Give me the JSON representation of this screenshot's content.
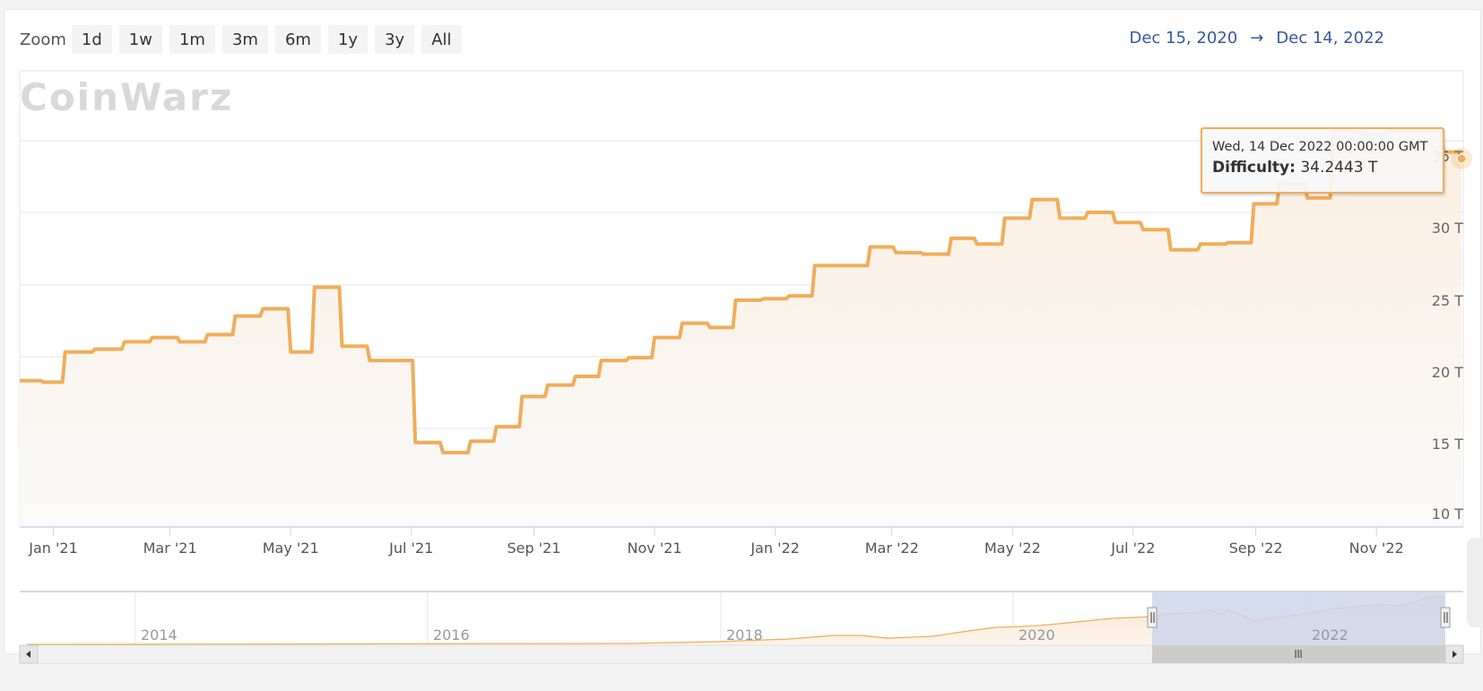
{
  "zoom": {
    "label": "Zoom",
    "buttons": [
      "1d",
      "1w",
      "1m",
      "3m",
      "6m",
      "1y",
      "3y",
      "All"
    ]
  },
  "range": {
    "from": "Dec 15, 2020",
    "arrow": "→",
    "to": "Dec 14, 2022"
  },
  "watermark": "CoinWarz",
  "tooltip": {
    "date": "Wed, 14 Dec 2022 00:00:00 GMT",
    "label": "Difficulty:",
    "value": "34.2443 T"
  },
  "colors": {
    "line": "#f0ad5a",
    "fill_top": "#fbeee0",
    "fill_bottom": "#fafafa",
    "navigator_mask": "#ccd6eb",
    "range_text": "#335aa0"
  },
  "chart_data": {
    "type": "line",
    "step": true,
    "title": "",
    "xlabel": "",
    "ylabel": "Difficulty",
    "series_name": "Difficulty",
    "unit": "T",
    "x_range": [
      "2020-12-15",
      "2022-12-14"
    ],
    "ylim": [
      10,
      37
    ],
    "grid": true,
    "y_ticks": [
      "10 T",
      "15 T",
      "20 T",
      "25 T",
      "30 T",
      "35 T"
    ],
    "y_tick_values": [
      10,
      15,
      20,
      25,
      30,
      35
    ],
    "x_ticks": [
      "Jan '21",
      "Mar '21",
      "May '21",
      "Jul '21",
      "Sep '21",
      "Nov '21",
      "Jan '22",
      "Mar '22",
      "May '22",
      "Jul '22",
      "Sep '22",
      "Nov '22"
    ],
    "points": [
      {
        "x": "2020-12-15",
        "y": 18.3
      },
      {
        "x": "2020-12-27",
        "y": 18.2
      },
      {
        "x": "2021-01-07",
        "y": 20.3
      },
      {
        "x": "2021-01-22",
        "y": 20.5
      },
      {
        "x": "2021-02-06",
        "y": 21.0
      },
      {
        "x": "2021-02-20",
        "y": 21.3
      },
      {
        "x": "2021-03-06",
        "y": 21.0
      },
      {
        "x": "2021-03-20",
        "y": 21.5
      },
      {
        "x": "2021-04-03",
        "y": 22.8
      },
      {
        "x": "2021-04-17",
        "y": 23.3
      },
      {
        "x": "2021-05-01",
        "y": 20.3
      },
      {
        "x": "2021-05-13",
        "y": 24.8
      },
      {
        "x": "2021-05-27",
        "y": 20.7
      },
      {
        "x": "2021-06-10",
        "y": 19.7
      },
      {
        "x": "2021-07-03",
        "y": 14.0
      },
      {
        "x": "2021-07-17",
        "y": 13.3
      },
      {
        "x": "2021-07-31",
        "y": 14.1
      },
      {
        "x": "2021-08-13",
        "y": 15.1
      },
      {
        "x": "2021-08-26",
        "y": 17.2
      },
      {
        "x": "2021-09-08",
        "y": 18.0
      },
      {
        "x": "2021-09-22",
        "y": 18.6
      },
      {
        "x": "2021-10-05",
        "y": 19.7
      },
      {
        "x": "2021-10-19",
        "y": 19.9
      },
      {
        "x": "2021-11-01",
        "y": 21.3
      },
      {
        "x": "2021-11-15",
        "y": 22.3
      },
      {
        "x": "2021-11-29",
        "y": 22.0
      },
      {
        "x": "2021-12-12",
        "y": 23.9
      },
      {
        "x": "2021-12-26",
        "y": 24.0
      },
      {
        "x": "2022-01-08",
        "y": 24.2
      },
      {
        "x": "2022-01-21",
        "y": 26.3
      },
      {
        "x": "2022-02-18",
        "y": 27.6
      },
      {
        "x": "2022-03-03",
        "y": 27.2
      },
      {
        "x": "2022-03-17",
        "y": 27.1
      },
      {
        "x": "2022-03-31",
        "y": 28.2
      },
      {
        "x": "2022-04-13",
        "y": 27.8
      },
      {
        "x": "2022-04-27",
        "y": 29.6
      },
      {
        "x": "2022-05-11",
        "y": 30.9
      },
      {
        "x": "2022-05-25",
        "y": 29.6
      },
      {
        "x": "2022-06-08",
        "y": 30.0
      },
      {
        "x": "2022-06-22",
        "y": 29.3
      },
      {
        "x": "2022-07-06",
        "y": 28.8
      },
      {
        "x": "2022-07-20",
        "y": 27.4
      },
      {
        "x": "2022-08-04",
        "y": 27.8
      },
      {
        "x": "2022-08-18",
        "y": 27.9
      },
      {
        "x": "2022-08-31",
        "y": 30.6
      },
      {
        "x": "2022-09-13",
        "y": 32.0
      },
      {
        "x": "2022-09-27",
        "y": 31.0
      },
      {
        "x": "2022-10-10",
        "y": 35.6
      },
      {
        "x": "2022-10-24",
        "y": 35.5
      },
      {
        "x": "2022-11-07",
        "y": 35.7
      },
      {
        "x": "2022-11-20",
        "y": 35.7
      },
      {
        "x": "2022-12-05",
        "y": 34.2
      },
      {
        "x": "2022-12-14",
        "y": 34.2443
      }
    ],
    "navigator": {
      "x_ticks": [
        "2014",
        "2016",
        "2018",
        "2020",
        "2022"
      ],
      "selected_range": [
        "2020-12-15",
        "2022-12-14"
      ]
    }
  }
}
